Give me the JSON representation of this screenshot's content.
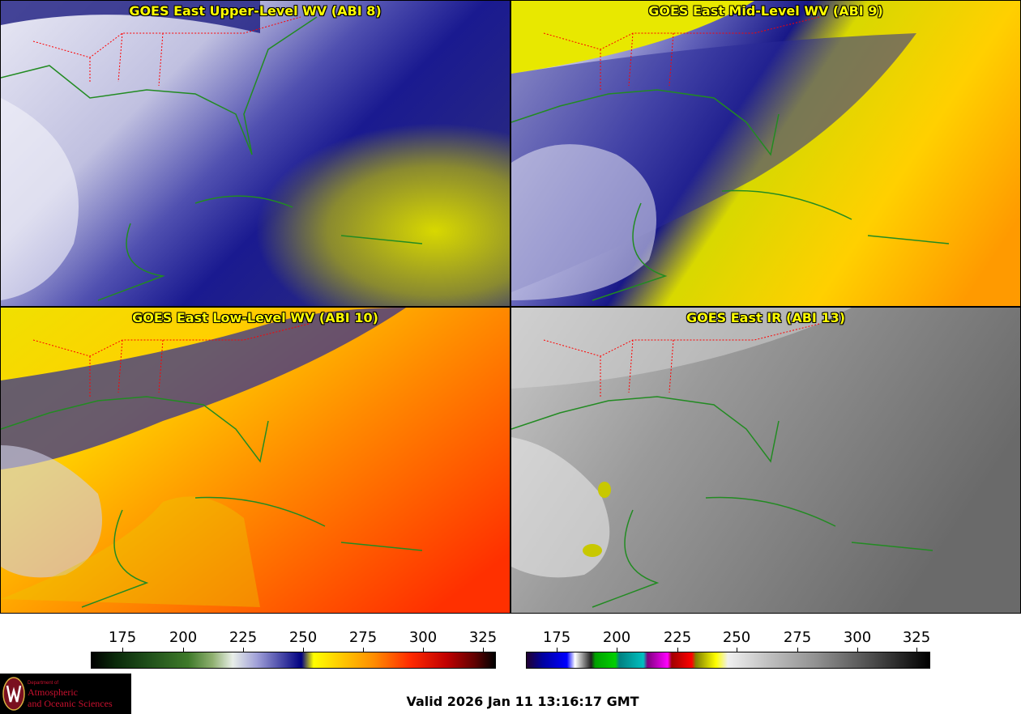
{
  "panels": [
    {
      "title": "GOES East Upper-Level WV (ABI 8)"
    },
    {
      "title": "GOES East Mid-Level WV (ABI 9)"
    },
    {
      "title": "GOES East Low-Level WV (ABI 10)"
    },
    {
      "title": "GOES East IR (ABI 13)"
    }
  ],
  "colorbars": {
    "wv": {
      "ticks": [
        "175",
        "200",
        "225",
        "250",
        "275",
        "300",
        "325"
      ]
    },
    "ir": {
      "ticks": [
        "175",
        "200",
        "225",
        "250",
        "275",
        "300",
        "325"
      ]
    }
  },
  "logo": {
    "dept": "Department of",
    "line1": "Atmospheric",
    "line2": "and Oceanic Sciences"
  },
  "valid_time": "Valid 2026 Jan 11 13:16:17 GMT",
  "colors": {
    "title_text": "#ffff00",
    "state_borders": "#ff0000",
    "coastlines": "#228b22"
  }
}
